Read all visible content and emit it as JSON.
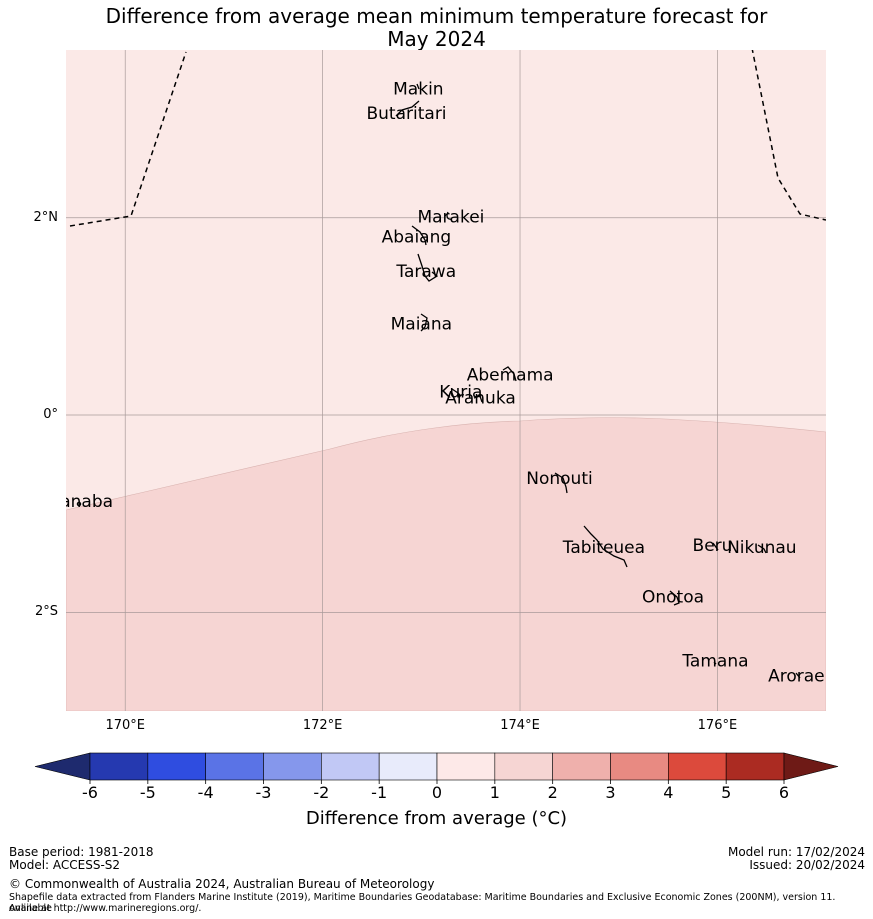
{
  "title_line1": "Difference from average mean minimum temperature forecast for",
  "title_line2": "May 2024",
  "map": {
    "lon_range": [
      169.4,
      177.1
    ],
    "lat_range": [
      -3.0,
      3.7
    ],
    "lat_ticks": [
      {
        "value": 2,
        "label": "2°N"
      },
      {
        "value": 0,
        "label": "0°"
      },
      {
        "value": -2,
        "label": "2°S"
      }
    ],
    "lon_ticks": [
      {
        "value": 170,
        "label": "170°E"
      },
      {
        "value": 172,
        "label": "172°E"
      },
      {
        "value": 174,
        "label": "174°E"
      },
      {
        "value": 176,
        "label": "176°E"
      }
    ],
    "upper_fill_color": "#fbe9e7",
    "lower_fill_color": "#f6d5d3",
    "gridline_color": "#a89a9a",
    "islands": [
      {
        "name": "Makin",
        "lon": 172.97,
        "lat": 3.3
      },
      {
        "name": "Butaritari",
        "lon": 172.85,
        "lat": 3.05
      },
      {
        "name": "Marakei",
        "lon": 173.3,
        "lat": 2.0
      },
      {
        "name": "Abaiang",
        "lon": 172.95,
        "lat": 1.8
      },
      {
        "name": "Tarawa",
        "lon": 173.05,
        "lat": 1.45
      },
      {
        "name": "Maiana",
        "lon": 173.0,
        "lat": 0.92
      },
      {
        "name": "Abemama",
        "lon": 173.9,
        "lat": 0.4
      },
      {
        "name": "Kuria",
        "lon": 173.4,
        "lat": 0.23
      },
      {
        "name": "Aranuka",
        "lon": 173.6,
        "lat": 0.17
      },
      {
        "name": "Nonouti",
        "lon": 174.4,
        "lat": -0.65
      },
      {
        "name": "Banaba",
        "lon": 169.55,
        "lat": -0.88
      },
      {
        "name": "Tabiteuea",
        "lon": 174.85,
        "lat": -1.35
      },
      {
        "name": "Beru",
        "lon": 175.95,
        "lat": -1.33
      },
      {
        "name": "Nikunau",
        "lon": 176.45,
        "lat": -1.35
      },
      {
        "name": "Onotoa",
        "lon": 175.55,
        "lat": -1.85
      },
      {
        "name": "Tamana",
        "lon": 175.98,
        "lat": -2.5
      },
      {
        "name": "Arorae",
        "lon": 176.8,
        "lat": -2.65
      }
    ]
  },
  "colorbar": {
    "ticks": [
      "-6",
      "-5",
      "-4",
      "-3",
      "-2",
      "-1",
      "0",
      "1",
      "2",
      "3",
      "4",
      "5",
      "6"
    ],
    "low_extend_color": "#1e2a6e",
    "high_extend_color": "#6e1a16",
    "colors": [
      "#2539b0",
      "#2f4de0",
      "#5a73e6",
      "#8597ec",
      "#c1c8f5",
      "#e8ebfb",
      "#fde9e8",
      "#f6d5d3",
      "#efb0ac",
      "#e88a82",
      "#dc4a3c",
      "#ab2b22"
    ],
    "label": "Difference from average (°C)"
  },
  "footer": {
    "base_period": "Base period: 1981-2018",
    "model": "Model: ACCESS-S2",
    "model_run": "Model run: 17/02/2024",
    "issued": "Issued: 20/02/2024",
    "copyright": "© Commonwealth of Australia 2024, Australian Bureau of Meteorology",
    "shapefile_line1": "Shapefile data extracted from Flanders Marine Institute (2019), Maritime Boundaries Geodatabase: Maritime Boundaries and Exclusive Economic Zones (200NM), version 11. Available",
    "shapefile_line2": "online at http://www.marineregions.org/."
  }
}
